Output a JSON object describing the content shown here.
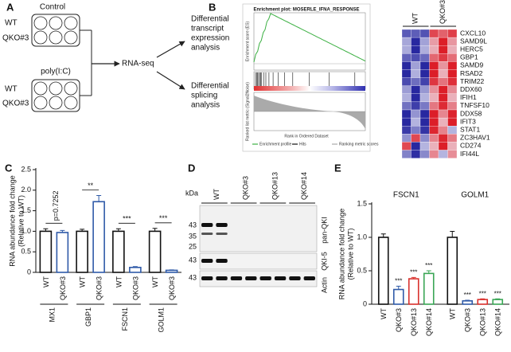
{
  "panel_labels": [
    "A",
    "B",
    "C",
    "D",
    "E"
  ],
  "schematic": {
    "control": "Control",
    "treatment": "poly(I:C)",
    "plate_1": [
      "WT",
      "QKO#3"
    ],
    "plate_2": [
      "WT",
      "QKO#3"
    ],
    "method": "RNA-seq",
    "output_1": [
      "Differential",
      "transcript",
      "expression",
      "analysis"
    ],
    "output_2": [
      "Differential",
      "splicing",
      "analysis"
    ]
  },
  "gsea": {
    "title": "Enrichment plot: MOSERLE_IFNA_RESPONSE",
    "y_label_top": "Enrichment score (ES)",
    "y_label_bottom": "Ranked list metric (Signal2Noise)",
    "x_label": "Rank in Ordered Dataset",
    "legend": [
      "Enrichment profile",
      "Hits",
      "Ranking metric scores"
    ]
  },
  "heatmap": {
    "groups": [
      "WT",
      "QKO#3"
    ],
    "genes": [
      "CXCL10",
      "SAMD9L",
      "HERC5",
      "GBP1",
      "SAMD9",
      "RSAD2",
      "TRIM22",
      "DDX60",
      "IFIH1",
      "TNFSF10",
      "DDX58",
      "IFIT3",
      "STAT1",
      "ZC3HAV1",
      "CD274",
      "IFI44L"
    ]
  },
  "blot": {
    "unit": "kDa",
    "lanes": [
      "WT",
      "QKO#3",
      "QKO#13",
      "QKO#14"
    ],
    "markers": [
      43,
      35,
      25,
      43,
      43
    ],
    "antibodies": [
      "pan-QKI",
      "QKI-5",
      "Actin"
    ]
  },
  "chart_data": [
    {
      "type": "bar",
      "y_label": [
        "RNA abundance fold change",
        "(Relative to WT)"
      ],
      "categories": [
        "MX1",
        "GBP1",
        "FSCN1",
        "GOLM1"
      ],
      "series": [
        {
          "name": "WT",
          "color": "#111111",
          "values": [
            1.0,
            1.0,
            1.0,
            1.0
          ],
          "errors": [
            0.06,
            0.05,
            0.06,
            0.07
          ]
        },
        {
          "name": "QKO#3",
          "color": "#2f5aa8",
          "values": [
            0.97,
            1.72,
            0.12,
            0.05
          ],
          "errors": [
            0.05,
            0.15,
            0.02,
            0.01
          ]
        }
      ],
      "annotations": [
        "p=0.7252",
        "**",
        "***",
        "***"
      ],
      "ylim": [
        0,
        2.5
      ],
      "yticks": [
        0,
        0.5,
        {
          "value": 1,
          "label": "1.0"
        },
        1.5,
        {
          "value": 2,
          "label": "2.0"
        },
        2.5
      ]
    },
    {
      "type": "bar",
      "y_label": [
        "RNA abundance fold change",
        "(Relative to WT)"
      ],
      "categories": [
        "FSCN1",
        "GOLM1"
      ],
      "series": [
        {
          "name": "WT",
          "color": "#111111",
          "values": [
            1.0,
            1.0
          ],
          "errors": [
            0.05,
            0.09
          ]
        },
        {
          "name": "QKO#3",
          "color": "#2f5aa8",
          "values": [
            0.22,
            0.05
          ],
          "errors": [
            0.05,
            0.01
          ],
          "annotations": [
            "***",
            "***"
          ]
        },
        {
          "name": "QKO#13",
          "color": "#d9302c",
          "values": [
            0.38,
            0.07
          ],
          "errors": [
            0.02,
            0.01
          ],
          "annotations": [
            "***",
            "***"
          ]
        },
        {
          "name": "QKO#14",
          "color": "#3aa655",
          "values": [
            0.46,
            0.07
          ],
          "errors": [
            0.04,
            0.01
          ],
          "annotations": [
            "***",
            "***"
          ]
        }
      ],
      "ylim": [
        0,
        1.5
      ],
      "yticks": [
        0,
        0.5,
        {
          "value": 1,
          "label": "1.0"
        },
        1.5
      ]
    }
  ]
}
